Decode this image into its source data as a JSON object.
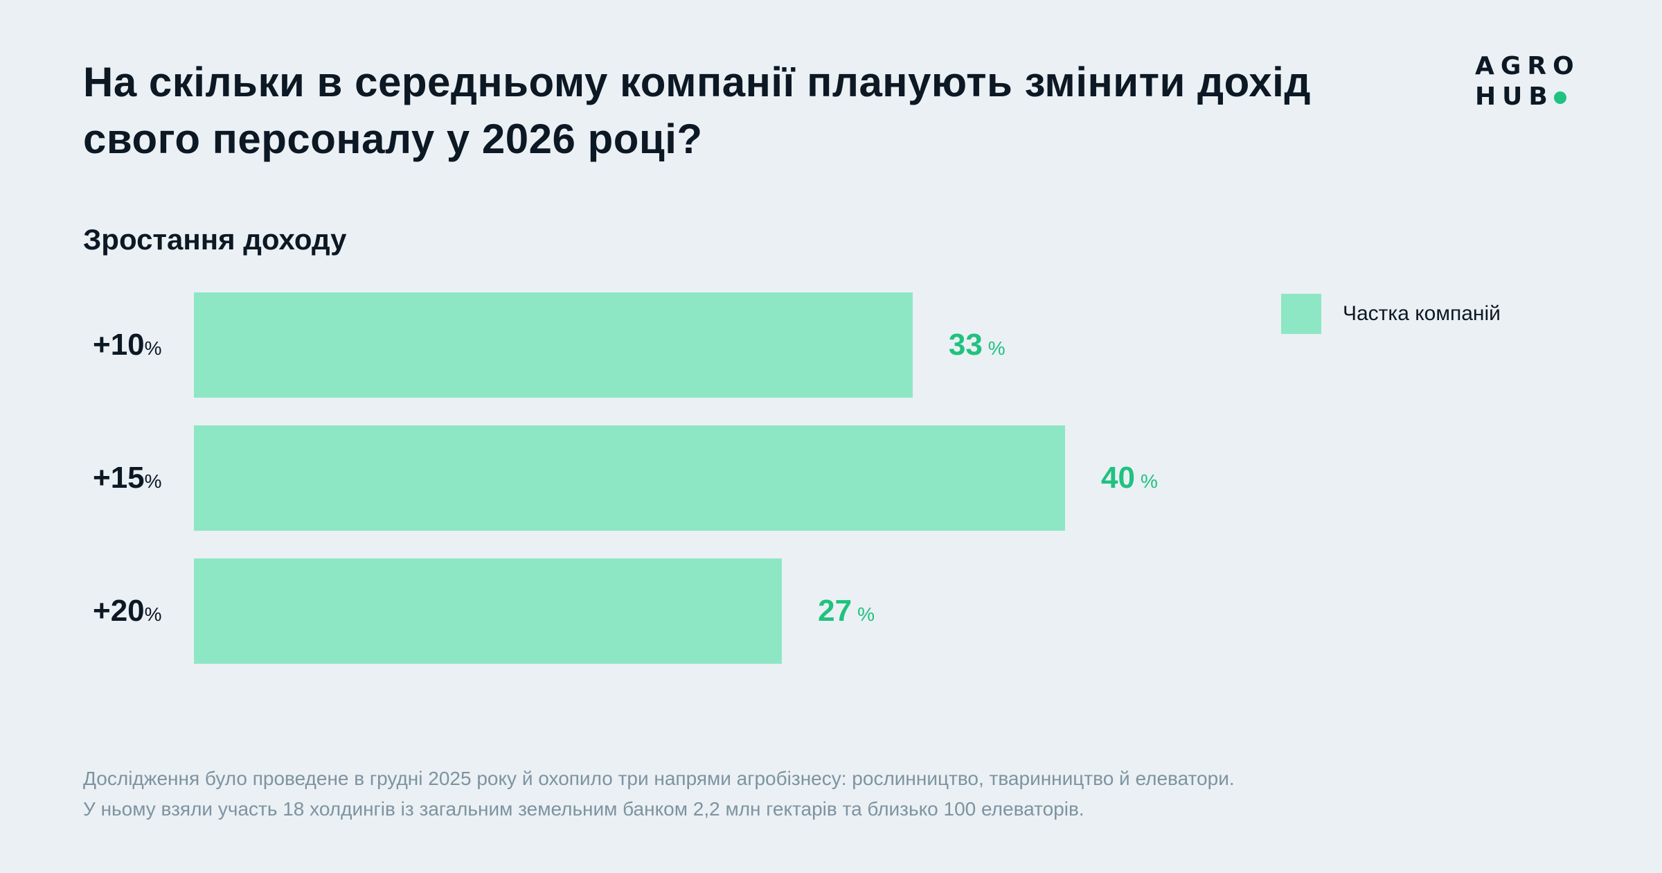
{
  "title": "На скільки в середньому компанії планують змінити дохід свого персоналу у 2026 році?",
  "logo": {
    "line1": "AGRO",
    "line2": "HUB",
    "accent": "#1fc27f"
  },
  "chart_data": {
    "type": "bar",
    "orientation": "horizontal",
    "subtitle": "Зростання доходу",
    "categories": [
      "+10",
      "+15",
      "+20"
    ],
    "category_unit": "%",
    "series": [
      {
        "name": "Частка компаній",
        "values": [
          33,
          40,
          27
        ],
        "color": "#8de7c4"
      }
    ],
    "value_unit": "%",
    "value_label_color": "#1fc27f",
    "legend_position": "top-right",
    "grid": false
  },
  "footer": {
    "line1": "Дослідження було проведене в грудні 2025 року й охопило три напрями агробізнесу: рослинництво, тваринництво й елеватори.",
    "line2": "У ньому взяли участь 18 холдингів із загальним земельним банком 2,2 млн гектарів та близько 100 елеваторів."
  }
}
